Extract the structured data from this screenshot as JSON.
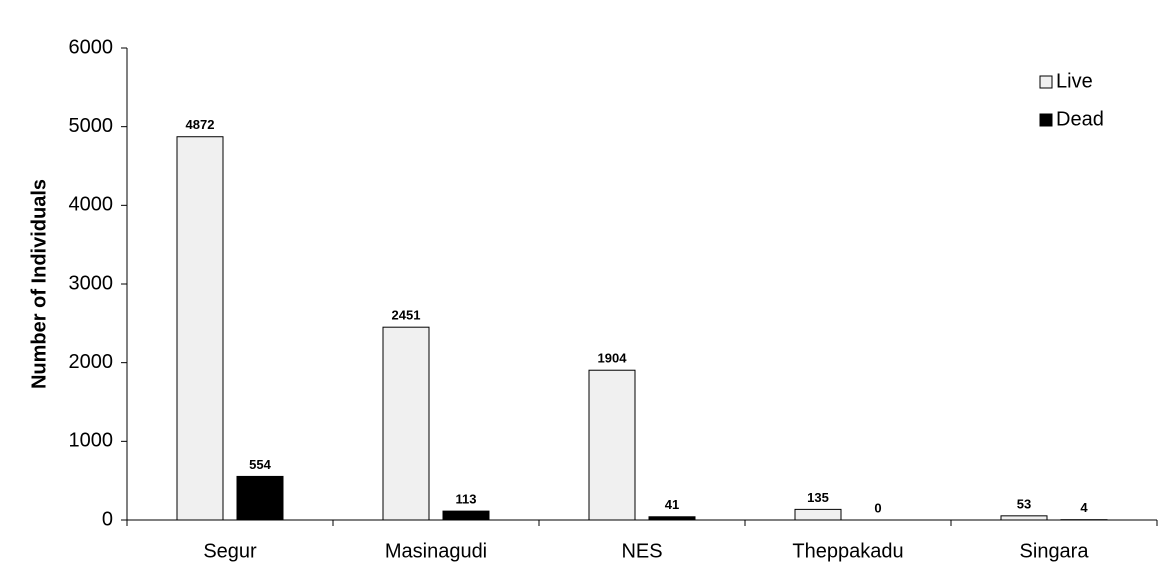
{
  "chart_data": {
    "type": "bar",
    "y_label": "Number of Individuals",
    "categories": [
      "Segur",
      "Masinagudi",
      "NES",
      "Theppakadu",
      "Singara"
    ],
    "series": [
      {
        "name": "Live",
        "color": "#f0f0f0",
        "values": [
          4872,
          2451,
          1904,
          135,
          53
        ]
      },
      {
        "name": "Dead",
        "color": "#000000",
        "values": [
          554,
          113,
          41,
          0,
          4
        ]
      }
    ],
    "ylim": [
      0,
      6000
    ],
    "yticks": [
      0,
      1000,
      2000,
      3000,
      4000,
      5000,
      6000
    ],
    "legend": "top-right",
    "grid": false
  }
}
